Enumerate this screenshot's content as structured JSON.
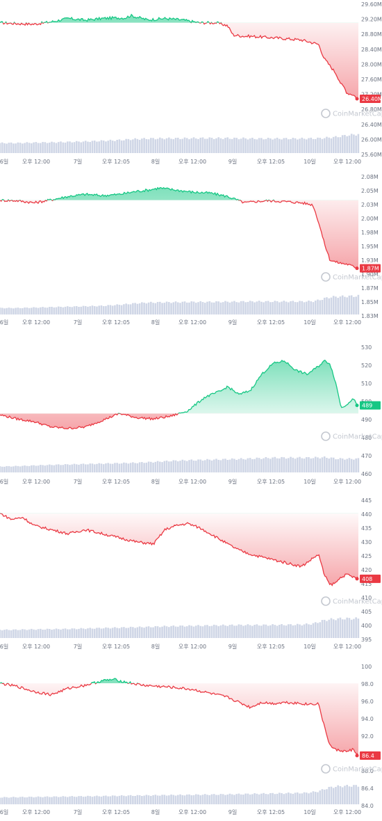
{
  "watermark": "CoinMarketCap",
  "x_labels": [
    "6일",
    "오후 12:00",
    "7일",
    "오후 12:05",
    "8일",
    "오후 12:00",
    "9일",
    "오후 12:05",
    "10일",
    "오후 12:00"
  ],
  "colors": {
    "up": "#16c784",
    "down": "#ea3943",
    "volume": "#cfd6e6",
    "grid": "#f0f1f4"
  },
  "chart_data": [
    {
      "type": "line",
      "y_ticks": [
        "29.60M",
        "29.20M",
        "28.80M",
        "28.40M",
        "28.00M",
        "27.60M",
        "27.20M",
        "26.80M",
        "26.40M",
        "26.00M",
        "25.60M"
      ],
      "ylim": [
        25.6,
        29.6
      ],
      "baseline": 29.05,
      "last_value_label": "26.40M",
      "last": 26.4,
      "x": [
        0,
        6,
        12,
        18,
        24,
        30,
        36,
        40,
        44,
        46,
        52,
        58,
        64,
        70,
        76,
        80,
        82,
        86,
        88,
        94,
        100,
        106,
        112,
        114,
        118,
        120,
        121,
        122,
        124,
        126
      ],
      "values": [
        29.05,
        29.02,
        29.0,
        29.08,
        29.2,
        29.14,
        29.2,
        29.22,
        29.22,
        29.3,
        29.15,
        29.2,
        29.15,
        29.05,
        29.05,
        28.95,
        28.62,
        28.58,
        28.58,
        28.54,
        28.5,
        28.45,
        28.3,
        27.8,
        27.3,
        26.9,
        26.8,
        26.6,
        26.55,
        26.4
      ],
      "volume": [
        0.45,
        0.45,
        0.47,
        0.48,
        0.5,
        0.52,
        0.55,
        0.57,
        0.6,
        0.62,
        0.65,
        0.66,
        0.66,
        0.67,
        0.67,
        0.67,
        0.66,
        0.66,
        0.65,
        0.65,
        0.65,
        0.65,
        0.66,
        0.68,
        0.72,
        0.76,
        0.78,
        0.8,
        0.82,
        0.85
      ]
    },
    {
      "type": "line",
      "y_ticks": [
        "2.08M",
        "2.05M",
        "2.03M",
        "2.00M",
        "1.98M",
        "1.95M",
        "1.93M",
        "1.90M",
        "1.87M",
        "1.85M",
        "1.83M"
      ],
      "ylim": [
        1.83,
        2.08
      ],
      "baseline": 2.031,
      "last_value_label": "1.87M",
      "last": 1.87,
      "x": [
        0,
        6,
        12,
        18,
        24,
        30,
        36,
        42,
        48,
        52,
        56,
        62,
        68,
        74,
        80,
        84,
        86,
        90,
        94,
        100,
        106,
        110,
        112,
        114,
        116,
        118,
        120,
        122,
        124,
        126
      ],
      "values": [
        2.031,
        2.03,
        2.025,
        2.032,
        2.04,
        2.045,
        2.042,
        2.045,
        2.052,
        2.055,
        2.06,
        2.055,
        2.05,
        2.048,
        2.04,
        2.03,
        2.025,
        2.028,
        2.03,
        2.028,
        2.025,
        2.02,
        1.98,
        1.93,
        1.89,
        1.885,
        1.882,
        1.88,
        1.875,
        1.87
      ],
      "volume": [
        0.3,
        0.3,
        0.32,
        0.34,
        0.36,
        0.38,
        0.4,
        0.45,
        0.52,
        0.55,
        0.56,
        0.57,
        0.58,
        0.58,
        0.59,
        0.59,
        0.6,
        0.6,
        0.6,
        0.6,
        0.6,
        0.61,
        0.66,
        0.74,
        0.8,
        0.82,
        0.83,
        0.84,
        0.85,
        0.86
      ]
    },
    {
      "type": "line",
      "y_ticks": [
        "530",
        "520",
        "510",
        "500",
        "490",
        "480",
        "470",
        "460"
      ],
      "ylim": [
        460,
        530
      ],
      "baseline": 483,
      "last_value_label": "489",
      "last": 489,
      "x": [
        0,
        6,
        12,
        18,
        24,
        30,
        36,
        42,
        48,
        54,
        60,
        66,
        72,
        78,
        80,
        84,
        88,
        92,
        96,
        100,
        104,
        108,
        112,
        114,
        116,
        118,
        120,
        122,
        124,
        126
      ],
      "values": [
        482,
        479,
        477,
        473,
        472,
        473,
        478,
        483,
        480,
        479,
        481,
        485,
        495,
        500,
        503,
        497,
        500,
        512,
        520,
        522,
        515,
        512,
        518,
        522,
        520,
        506,
        487,
        490,
        494,
        489
      ],
      "volume": [
        0.28,
        0.3,
        0.33,
        0.36,
        0.38,
        0.4,
        0.42,
        0.44,
        0.46,
        0.5,
        0.55,
        0.58,
        0.6,
        0.62,
        0.63,
        0.64,
        0.66,
        0.68,
        0.7,
        0.7,
        0.7,
        0.7,
        0.71,
        0.72,
        0.7,
        0.66,
        0.65,
        0.65,
        0.65,
        0.65
      ]
    },
    {
      "type": "line",
      "y_ticks": [
        "445",
        "440",
        "435",
        "430",
        "425",
        "420",
        "415",
        "410",
        "405",
        "400",
        "395"
      ],
      "ylim": [
        393,
        445
      ],
      "baseline": 440,
      "last_value_label": "408",
      "last": 408,
      "x": [
        0,
        4,
        8,
        12,
        18,
        24,
        30,
        36,
        42,
        48,
        54,
        58,
        62,
        66,
        70,
        74,
        80,
        84,
        88,
        94,
        100,
        106,
        110,
        112,
        114,
        116,
        118,
        120,
        122,
        126
      ],
      "values": [
        440,
        437,
        438,
        434,
        432,
        430,
        432,
        430,
        428,
        426,
        425,
        432,
        434,
        435,
        433,
        430,
        425,
        422,
        420,
        418,
        416,
        414,
        418,
        420,
        410,
        405,
        406,
        409,
        410,
        408
      ],
      "volume": [
        0.38,
        0.38,
        0.39,
        0.4,
        0.41,
        0.42,
        0.44,
        0.46,
        0.48,
        0.5,
        0.52,
        0.54,
        0.55,
        0.56,
        0.57,
        0.58,
        0.59,
        0.6,
        0.6,
        0.6,
        0.61,
        0.62,
        0.66,
        0.74,
        0.82,
        0.86,
        0.88,
        0.9,
        0.9,
        0.9
      ]
    },
    {
      "type": "line",
      "y_ticks": [
        "100",
        "98.0",
        "96.0",
        "94.0",
        "92.0",
        "90.0",
        "88.0",
        "86.4",
        "84.0"
      ],
      "ylim": [
        83,
        100
      ],
      "baseline": 97.8,
      "last_value_label": "86.4",
      "last": 86.4,
      "x": [
        0,
        6,
        12,
        18,
        24,
        30,
        36,
        40,
        44,
        50,
        56,
        62,
        68,
        74,
        80,
        84,
        88,
        92,
        96,
        100,
        104,
        108,
        112,
        114,
        116,
        118,
        120,
        122,
        124,
        126
      ],
      "values": [
        97.8,
        97.3,
        96.5,
        96.0,
        97.0,
        97.5,
        98.2,
        98.4,
        98.0,
        97.5,
        97.3,
        97.1,
        96.8,
        96.2,
        95.6,
        94.8,
        94.0,
        94.8,
        94.6,
        94.8,
        94.7,
        94.5,
        94.6,
        91.0,
        88.0,
        87.3,
        87.2,
        87.0,
        87.4,
        86.4
      ],
      "volume": [
        0.32,
        0.33,
        0.34,
        0.35,
        0.36,
        0.37,
        0.38,
        0.39,
        0.4,
        0.41,
        0.42,
        0.43,
        0.44,
        0.45,
        0.46,
        0.47,
        0.48,
        0.49,
        0.5,
        0.51,
        0.52,
        0.53,
        0.6,
        0.7,
        0.78,
        0.82,
        0.84,
        0.85,
        0.86,
        0.86
      ]
    }
  ]
}
